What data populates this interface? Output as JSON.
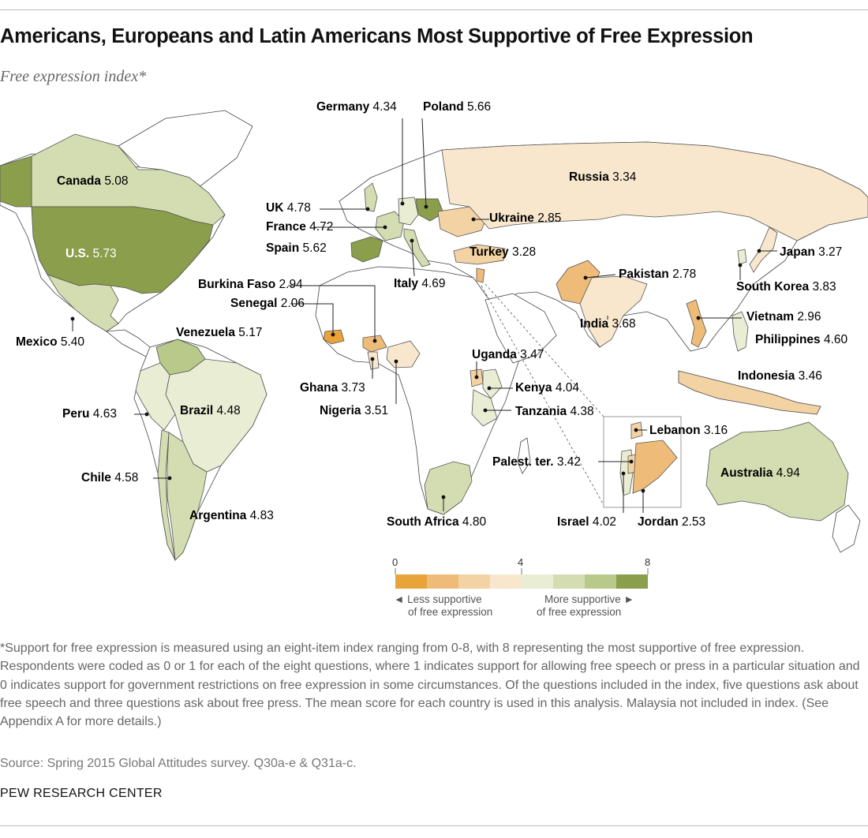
{
  "title": "Americans, Europeans and Latin Americans Most Supportive of Free Expression",
  "subtitle": "Free expression index*",
  "colors": {
    "scale": [
      "#e8a33a",
      "#eebc78",
      "#f3d3a4",
      "#f8e7cc",
      "#e9edd4",
      "#d3ddb1",
      "#b9c98a",
      "#8a9e4c"
    ],
    "land": "#ffffff",
    "border": "#555555"
  },
  "countries": [
    {
      "key": "germany",
      "name": "Germany",
      "value": "4.34"
    },
    {
      "key": "poland",
      "name": "Poland",
      "value": "5.66"
    },
    {
      "key": "canada",
      "name": "Canada",
      "value": "5.08"
    },
    {
      "key": "us",
      "name": "U.S.",
      "value": "5.73"
    },
    {
      "key": "russia",
      "name": "Russia",
      "value": "3.34"
    },
    {
      "key": "uk",
      "name": "UK",
      "value": "4.78"
    },
    {
      "key": "ukraine",
      "name": "Ukraine",
      "value": "2.85"
    },
    {
      "key": "france",
      "name": "France",
      "value": "4.72"
    },
    {
      "key": "spain",
      "name": "Spain",
      "value": "5.62"
    },
    {
      "key": "turkey",
      "name": "Turkey",
      "value": "3.28"
    },
    {
      "key": "japan",
      "name": "Japan",
      "value": "3.27"
    },
    {
      "key": "burkina",
      "name": "Burkina Faso",
      "value": "2.94"
    },
    {
      "key": "pakistan",
      "name": "Pakistan",
      "value": "2.78"
    },
    {
      "key": "senegal",
      "name": "Senegal",
      "value": "2.06"
    },
    {
      "key": "italy",
      "name": "Italy",
      "value": "4.69"
    },
    {
      "key": "southkorea",
      "name": "South Korea",
      "value": "3.83"
    },
    {
      "key": "mexico",
      "name": "Mexico",
      "value": "5.40"
    },
    {
      "key": "venezuela",
      "name": "Venezuela",
      "value": "5.17"
    },
    {
      "key": "india",
      "name": "India",
      "value": "3.68"
    },
    {
      "key": "vietnam",
      "name": "Vietnam",
      "value": "2.96"
    },
    {
      "key": "philippines",
      "name": "Philippines",
      "value": "4.60"
    },
    {
      "key": "uganda",
      "name": "Uganda",
      "value": "3.47"
    },
    {
      "key": "indonesia",
      "name": "Indonesia",
      "value": "3.46"
    },
    {
      "key": "ghana",
      "name": "Ghana",
      "value": "3.73"
    },
    {
      "key": "kenya",
      "name": "Kenya",
      "value": "4.04"
    },
    {
      "key": "peru",
      "name": "Peru",
      "value": "4.63"
    },
    {
      "key": "brazil",
      "name": "Brazil",
      "value": "4.48"
    },
    {
      "key": "nigeria",
      "name": "Nigeria",
      "value": "3.51"
    },
    {
      "key": "tanzania",
      "name": "Tanzania",
      "value": "4.38"
    },
    {
      "key": "lebanon",
      "name": "Lebanon",
      "value": "3.16"
    },
    {
      "key": "palestine",
      "name": "Palest. ter.",
      "value": "3.42"
    },
    {
      "key": "chile",
      "name": "Chile",
      "value": "4.58"
    },
    {
      "key": "australia",
      "name": "Australia",
      "value": "4.94"
    },
    {
      "key": "argentina",
      "name": "Argentina",
      "value": "4.83"
    },
    {
      "key": "southafrica",
      "name": "South Africa",
      "value": "4.80"
    },
    {
      "key": "israel",
      "name": "Israel",
      "value": "4.02"
    },
    {
      "key": "jordan",
      "name": "Jordan",
      "value": "2.53"
    }
  ],
  "legend": {
    "min": "0",
    "mid": "4",
    "max": "8",
    "less_line1": "◄ Less supportive",
    "less_line2": "of free expression",
    "more_line1": "More supportive ►",
    "more_line2": "of free expression"
  },
  "note": "*Support for free expression is measured using an eight-item index ranging from 0-8, with 8 representing the most supportive of free expression. Respondents were coded as 0 or 1 for each of the eight questions, where 1 indicates support for allowing free speech or press in a particular situation and 0 indicates support for government restrictions on free expression in some circumstances. Of the questions included in the index, five questions ask about free speech and three questions ask about free press. The mean score for each country is used in this analysis. Malaysia not included in index. (See Appendix A for more details.)",
  "source": "Source: Spring 2015 Global Attitudes survey. Q30a-e & Q31a-c.",
  "organization": "PEW RESEARCH CENTER"
}
